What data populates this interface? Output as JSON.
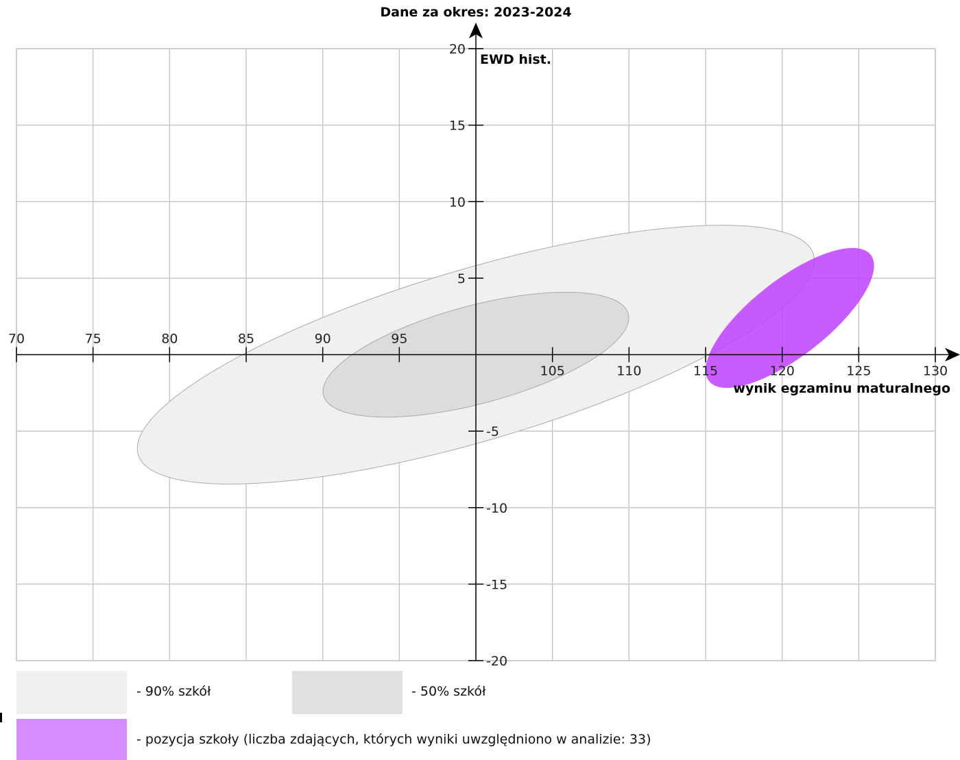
{
  "chart_data": {
    "type": "scatter",
    "title": "Dane za okres: 2023-2024",
    "xlabel": "wynik egzaminu maturalnego",
    "ylabel": "EWD hist.",
    "xlim": [
      70,
      130
    ],
    "ylim": [
      -20,
      20
    ],
    "x_ticks": [
      70,
      75,
      80,
      85,
      90,
      95,
      105,
      110,
      115,
      120,
      125,
      130
    ],
    "y_ticks": [
      20,
      15,
      10,
      5,
      -5,
      -10,
      -15,
      -20
    ],
    "grid": true,
    "regions": [
      {
        "name": "90% szkół",
        "shape": "ellipse",
        "cx": 100,
        "cy": 0,
        "rx": 23,
        "ry": 5.6,
        "angle_deg": 16.5,
        "color": "#f0f0f0",
        "stroke": "#aaaaaa"
      },
      {
        "name": "50% szkół",
        "shape": "ellipse",
        "cx": 100,
        "cy": 0,
        "rx": 10.3,
        "ry": 3.2,
        "angle_deg": 15,
        "color": "#dcdcdc",
        "stroke": "#aaaaaa"
      },
      {
        "name": "pozycja szkoły",
        "shape": "ellipse",
        "cx": 120.5,
        "cy": 2.4,
        "rx": 6.7,
        "ry": 2.5,
        "angle_deg": 38,
        "color": "#bf40ff",
        "opacity": 0.85
      }
    ]
  },
  "legend": {
    "items": [
      {
        "label": "- 90% szkół",
        "color": "#f0f0f0"
      },
      {
        "label": "- 50% szkół",
        "color": "#e0e0e0"
      },
      {
        "label": "- pozycja szkoły (liczba zdających, których wyniki uwzględniono w analizie: 33)",
        "color": "#d48cff"
      }
    ]
  }
}
